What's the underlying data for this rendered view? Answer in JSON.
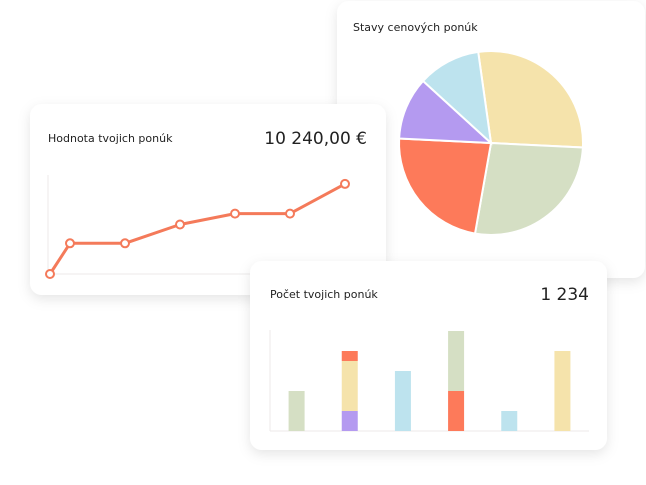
{
  "chart_data": [
    {
      "type": "line",
      "title": "Hodnota tvojich ponúk",
      "total": "10 240,00 €",
      "color": "#f47a5a",
      "x": [
        0,
        4,
        15,
        26,
        37,
        48,
        59
      ],
      "xlim": [
        0,
        59
      ],
      "values": [
        0,
        31,
        31,
        50,
        61,
        61,
        91
      ],
      "ylim": [
        0,
        100
      ]
    },
    {
      "type": "pie",
      "title": "Stavy cenových ponúk",
      "values": [
        28,
        27,
        23,
        11,
        11
      ],
      "colors": [
        "#f5e3ab",
        "#d5dfc4",
        "#fd7a5a",
        "#b49af0",
        "#bde3ee"
      ]
    },
    {
      "type": "bar",
      "title": "Počet tvojich ponúk",
      "total": "1 234",
      "categories": [
        null,
        null,
        null,
        null,
        null,
        null
      ],
      "ylim": [
        0,
        100
      ],
      "series": [
        {
          "color": "#b49af0",
          "values": [
            0,
            20,
            0,
            0,
            0,
            0
          ]
        },
        {
          "color": "#f5e3ab",
          "values": [
            0,
            50,
            0,
            0,
            0,
            80
          ]
        },
        {
          "color": "#fd7a5a",
          "values": [
            0,
            10,
            0,
            40,
            0,
            0
          ]
        },
        {
          "color": "#d5dfc4",
          "values": [
            40,
            0,
            0,
            60,
            0,
            0
          ]
        },
        {
          "color": "#bde3ee",
          "values": [
            0,
            0,
            60,
            0,
            20,
            0
          ]
        }
      ]
    }
  ]
}
